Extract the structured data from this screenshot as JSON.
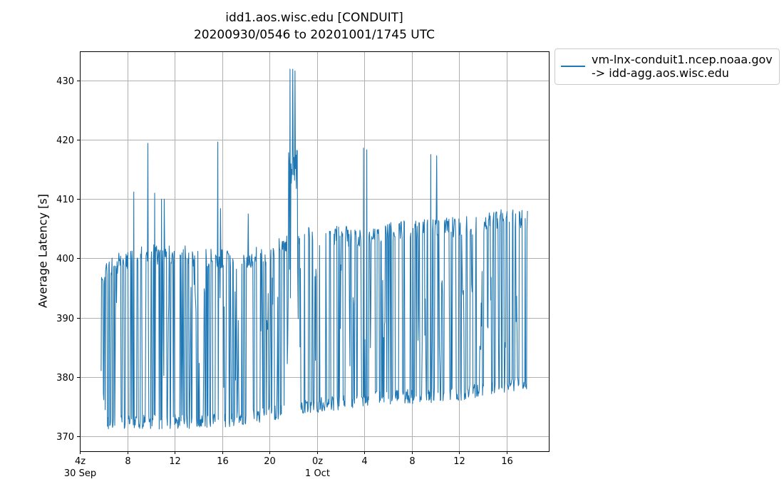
{
  "chart_data": {
    "type": "line",
    "title_line1": "idd1.aos.wisc.edu [CONDUIT]",
    "title_line2": "20200930/0546 to 20201001/1745 UTC",
    "ylabel": "Average Latency [s]",
    "legend": {
      "series_label_line1": "vm-lnx-conduit1.ncep.noaa.gov",
      "series_label_line2": "-> idd-agg.aos.wisc.edu",
      "position": "outside-top-right"
    },
    "line_color": "#1f77b4",
    "grid_color": "#b0b0b0",
    "grid": true,
    "x_axis": {
      "min_hour": 3.97,
      "max_hour": 43.55,
      "ticks": [
        {
          "hour": 4,
          "label": "4z",
          "date": "30 Sep"
        },
        {
          "hour": 8,
          "label": "8"
        },
        {
          "hour": 12,
          "label": "12"
        },
        {
          "hour": 16,
          "label": "16"
        },
        {
          "hour": 20,
          "label": "20"
        },
        {
          "hour": 24,
          "label": "0z",
          "date": "1 Oct"
        },
        {
          "hour": 28,
          "label": "4"
        },
        {
          "hour": 32,
          "label": "8"
        },
        {
          "hour": 36,
          "label": "12"
        },
        {
          "hour": 40,
          "label": "16"
        }
      ]
    },
    "y_axis": {
      "min": 367.5,
      "max": 434.9,
      "ticks": [
        370,
        380,
        390,
        400,
        410,
        420,
        430
      ]
    },
    "data_start_hour": 5.767,
    "data_end_hour": 41.75,
    "baseline_low_envelope": [
      [
        5.77,
        379.0
      ],
      [
        6.3,
        371.2
      ],
      [
        12,
        371.2
      ],
      [
        16,
        371.5
      ],
      [
        20,
        372.5
      ],
      [
        24,
        374.0
      ],
      [
        28,
        375.0
      ],
      [
        32,
        375.5
      ],
      [
        36,
        376.0
      ],
      [
        41.75,
        377.8
      ]
    ],
    "baseline_high_envelope": [
      [
        5.77,
        398.0
      ],
      [
        6.5,
        400.5
      ],
      [
        10,
        402.5
      ],
      [
        14,
        402.0
      ],
      [
        18,
        401.5
      ],
      [
        20,
        402.5
      ],
      [
        22,
        405.0
      ],
      [
        24,
        405.5
      ],
      [
        28,
        405.5
      ],
      [
        32,
        406.5
      ],
      [
        36,
        407.0
      ],
      [
        40,
        408.5
      ],
      [
        41.75,
        408.0
      ]
    ],
    "plateaus": [
      {
        "start_hour": 21.55,
        "end_hour": 22.35,
        "value": 418.5
      }
    ],
    "spikes": [
      {
        "hour": 8.51,
        "value": 411.2
      },
      {
        "hour": 9.7,
        "value": 419.4
      },
      {
        "hour": 10.3,
        "value": 411.0
      },
      {
        "hour": 10.85,
        "value": 410.0
      },
      {
        "hour": 11.1,
        "value": 410.0
      },
      {
        "hour": 15.6,
        "value": 419.6
      },
      {
        "hour": 15.85,
        "value": 408.4
      },
      {
        "hour": 18.2,
        "value": 407.5
      },
      {
        "hour": 21.7,
        "value": 431.9
      },
      {
        "hour": 21.92,
        "value": 431.9
      },
      {
        "hour": 22.13,
        "value": 431.6
      },
      {
        "hour": 27.9,
        "value": 418.6
      },
      {
        "hour": 28.2,
        "value": 418.3
      },
      {
        "hour": 33.6,
        "value": 417.5
      },
      {
        "hour": 34.1,
        "value": 417.3
      }
    ],
    "synthesis": {
      "seed": 1337,
      "n_points": 940
    }
  }
}
